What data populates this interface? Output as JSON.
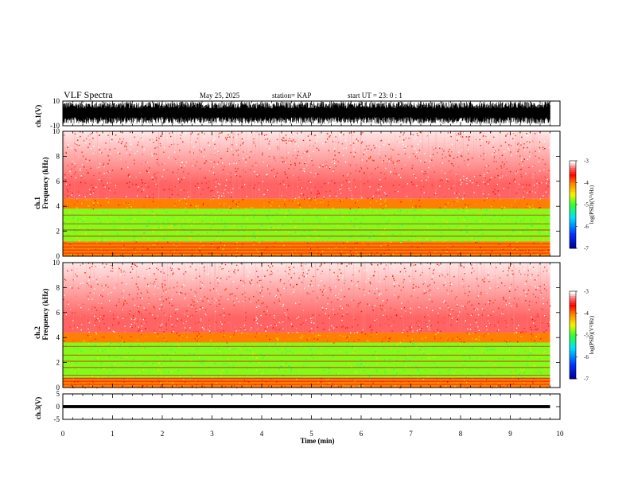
{
  "header": {
    "title": "VLF Spectra",
    "date": "May 25, 2025",
    "station": "station= KAP",
    "start": "start  UT  =   23: 0  : 1"
  },
  "chart_data": [
    {
      "type": "line",
      "name": "ch.1(V) waveform",
      "ylabel": "ch.1(V)",
      "ylim": [
        -10,
        10
      ],
      "yticks": [
        "10",
        "-10"
      ],
      "xlim": [
        0,
        10
      ],
      "data_end_min": 9.8,
      "description": "dense broadband waveform spanning roughly -8 to +9 V"
    },
    {
      "type": "heatmap",
      "name": "ch.1 spectrogram",
      "ylabel_top": "ch.1",
      "ylabel": "Frequency (kHz)",
      "ylim": [
        0,
        10
      ],
      "yticks": [
        "0",
        "2",
        "4",
        "6",
        "8",
        "10"
      ],
      "xlim": [
        0,
        10
      ],
      "colorbar": {
        "label": "log(PSD)(V²/Hz)",
        "range": [
          -7,
          -3
        ],
        "ticks": [
          "-3",
          "-4",
          "-5",
          "-6",
          "-7"
        ]
      },
      "bands": [
        {
          "from_khz": 0,
          "to_khz": 1.2,
          "level": -4.0
        },
        {
          "from_khz": 1.2,
          "to_khz": 3.8,
          "level": -4.8
        },
        {
          "from_khz": 3.8,
          "to_khz": 4.6,
          "level": -4.0
        },
        {
          "from_khz": 4.6,
          "to_khz": 10,
          "level": -3.3
        }
      ]
    },
    {
      "type": "heatmap",
      "name": "ch.2 spectrogram",
      "ylabel_top": "ch.2",
      "ylabel": "Frequency (kHz)",
      "ylim": [
        0,
        10
      ],
      "yticks": [
        "0",
        "2",
        "4",
        "6",
        "8",
        "10"
      ],
      "xlim": [
        0,
        10
      ],
      "colorbar": {
        "label": "log(PSD)(V²/Hz)",
        "range": [
          -7,
          -3
        ],
        "ticks": [
          "-3",
          "-4",
          "-5",
          "-6",
          "-7"
        ]
      },
      "bands": [
        {
          "from_khz": 0,
          "to_khz": 0.8,
          "level": -4.0
        },
        {
          "from_khz": 0.8,
          "to_khz": 3.6,
          "level": -4.8
        },
        {
          "from_khz": 3.6,
          "to_khz": 4.4,
          "level": -4.0
        },
        {
          "from_khz": 4.4,
          "to_khz": 10,
          "level": -3.3
        }
      ]
    },
    {
      "type": "line",
      "name": "ch.3(V) waveform",
      "ylabel": "ch.3(V)",
      "ylim": [
        -5,
        5
      ],
      "yticks": [
        "5",
        "0",
        "-5"
      ],
      "xlim": [
        0,
        10
      ],
      "xticks": [
        "0",
        "1",
        "2",
        "3",
        "4",
        "5",
        "6",
        "7",
        "8",
        "9",
        "10"
      ],
      "xlabel": "Time (min)",
      "data_end_min": 9.8,
      "band_v": [
        -0.6,
        0.6
      ]
    }
  ]
}
